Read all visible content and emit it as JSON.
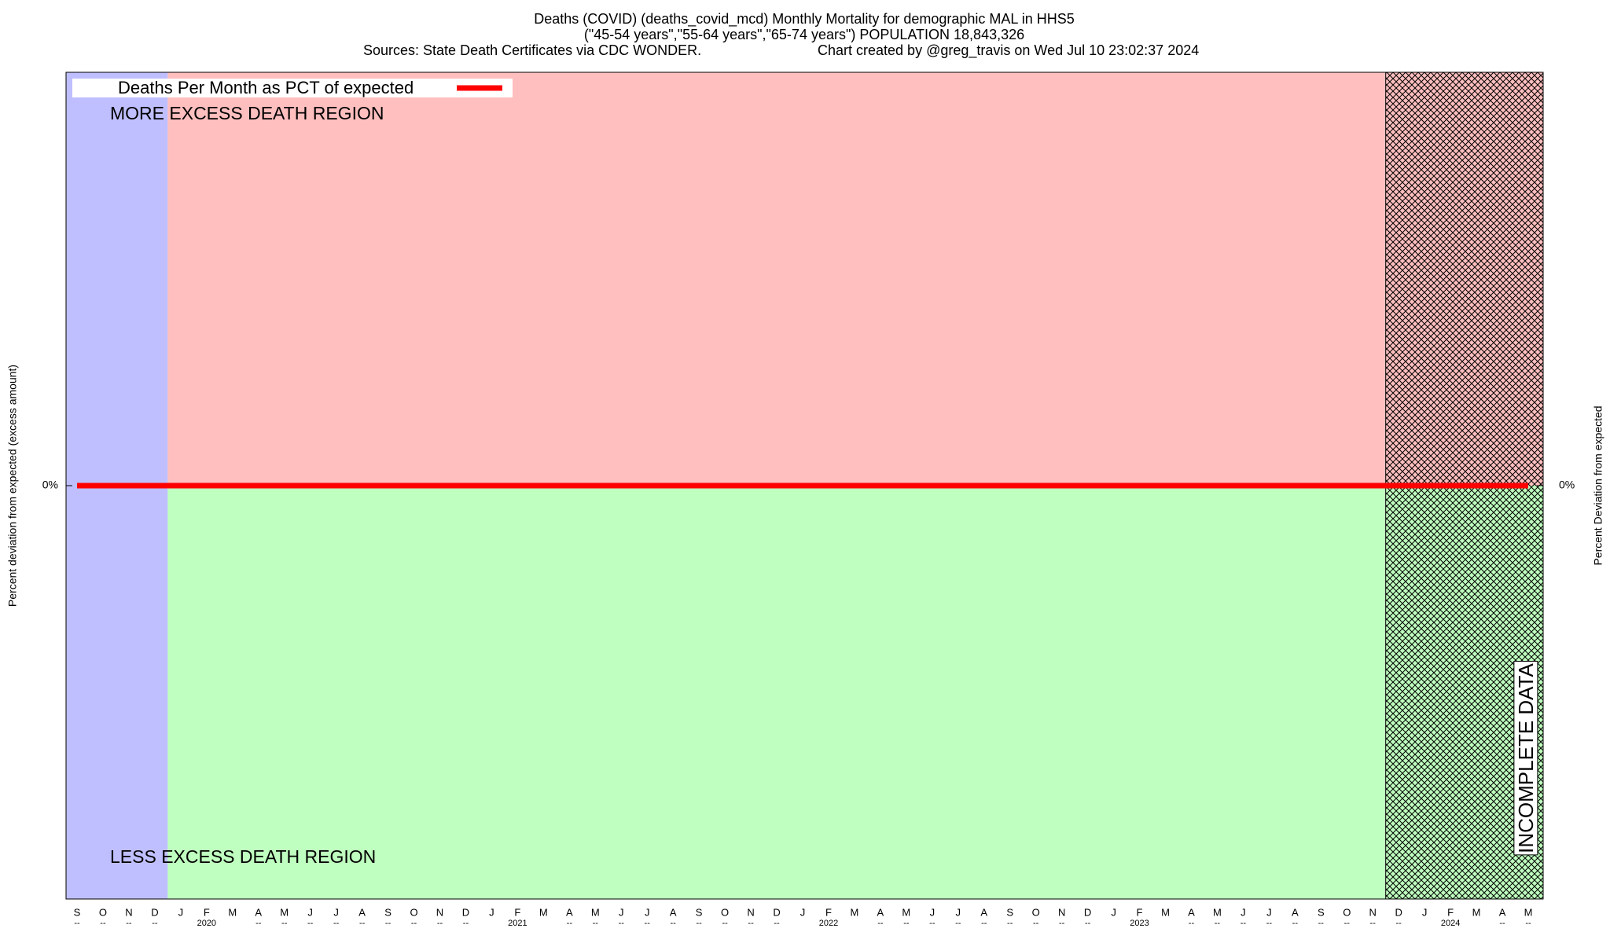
{
  "chart_data": {
    "type": "line",
    "title": "Deaths (COVID) (deaths_covid_mcd) Monthly Mortality for demographic MAL in HHS5",
    "subtitle": "(\"45-54 years\",\"55-64 years\",\"65-74 years\") POPULATION 18,843,326",
    "source": "Sources: State Death Certificates via CDC WONDER.",
    "credit": "Chart created by @greg_travis on Wed Jul 10 23:02:37 2024",
    "y_label": "Percent deviation from expected (excess amount)",
    "y2_label": "Percent Deviation from expected",
    "annotations": [
      "MORE EXCESS DEATH REGION",
      "LESS EXCESS DEATH REGION",
      "INCOMPLETE DATA"
    ],
    "categories": [
      "S",
      "O",
      "N",
      "D",
      "J",
      "F",
      "M",
      "A",
      "M",
      "J",
      "J",
      "A",
      "S",
      "O",
      "N",
      "D",
      "J",
      "F",
      "M",
      "A",
      "M",
      "J",
      "J",
      "A",
      "S",
      "O",
      "N",
      "D",
      "J",
      "F",
      "M",
      "A",
      "M",
      "J",
      "J",
      "A",
      "S",
      "O",
      "N",
      "D",
      "J",
      "F",
      "M",
      "A",
      "M",
      "J",
      "J",
      "A",
      "S",
      "O",
      "N",
      "D",
      "J",
      "F",
      "M",
      "A",
      "M"
    ],
    "x_sublabels": [
      "--",
      "--",
      "--",
      "--",
      null,
      "2020",
      null,
      "--",
      "--",
      "--",
      "--",
      "--",
      "--",
      "--",
      "--",
      "--",
      null,
      "2021",
      null,
      "--",
      "--",
      "--",
      "--",
      "--",
      "--",
      "--",
      "--",
      "--",
      null,
      "2022",
      null,
      "--",
      "--",
      "--",
      "--",
      "--",
      "--",
      "--",
      "--",
      "--",
      null,
      "2023",
      null,
      "--",
      "--",
      "--",
      "--",
      "--",
      "--",
      "--",
      "--",
      "--",
      null,
      "2024",
      null,
      "--",
      "--"
    ],
    "series": [
      {
        "name": "Deaths Per Month as PCT of expected",
        "color": "#ff0000",
        "values": [
          0,
          0,
          0,
          0,
          0,
          0,
          0,
          0,
          0,
          0,
          0,
          0,
          0,
          0,
          0,
          0,
          0,
          0,
          0,
          0,
          0,
          0,
          0,
          0,
          0,
          0,
          0,
          0,
          0,
          0,
          0,
          0,
          0,
          0,
          0,
          0,
          0,
          0,
          0,
          0,
          0,
          0,
          0,
          0,
          0,
          0,
          0,
          0,
          0,
          0,
          0,
          0,
          0,
          0,
          0,
          0,
          0
        ]
      }
    ],
    "ylim": [
      -100,
      100
    ],
    "yticks": [
      {
        "value": 0,
        "label": "0%"
      }
    ],
    "y2lim": [
      -100,
      100
    ],
    "y2ticks": [
      {
        "value": 0,
        "label": "0%"
      }
    ],
    "legend": "top-left"
  }
}
